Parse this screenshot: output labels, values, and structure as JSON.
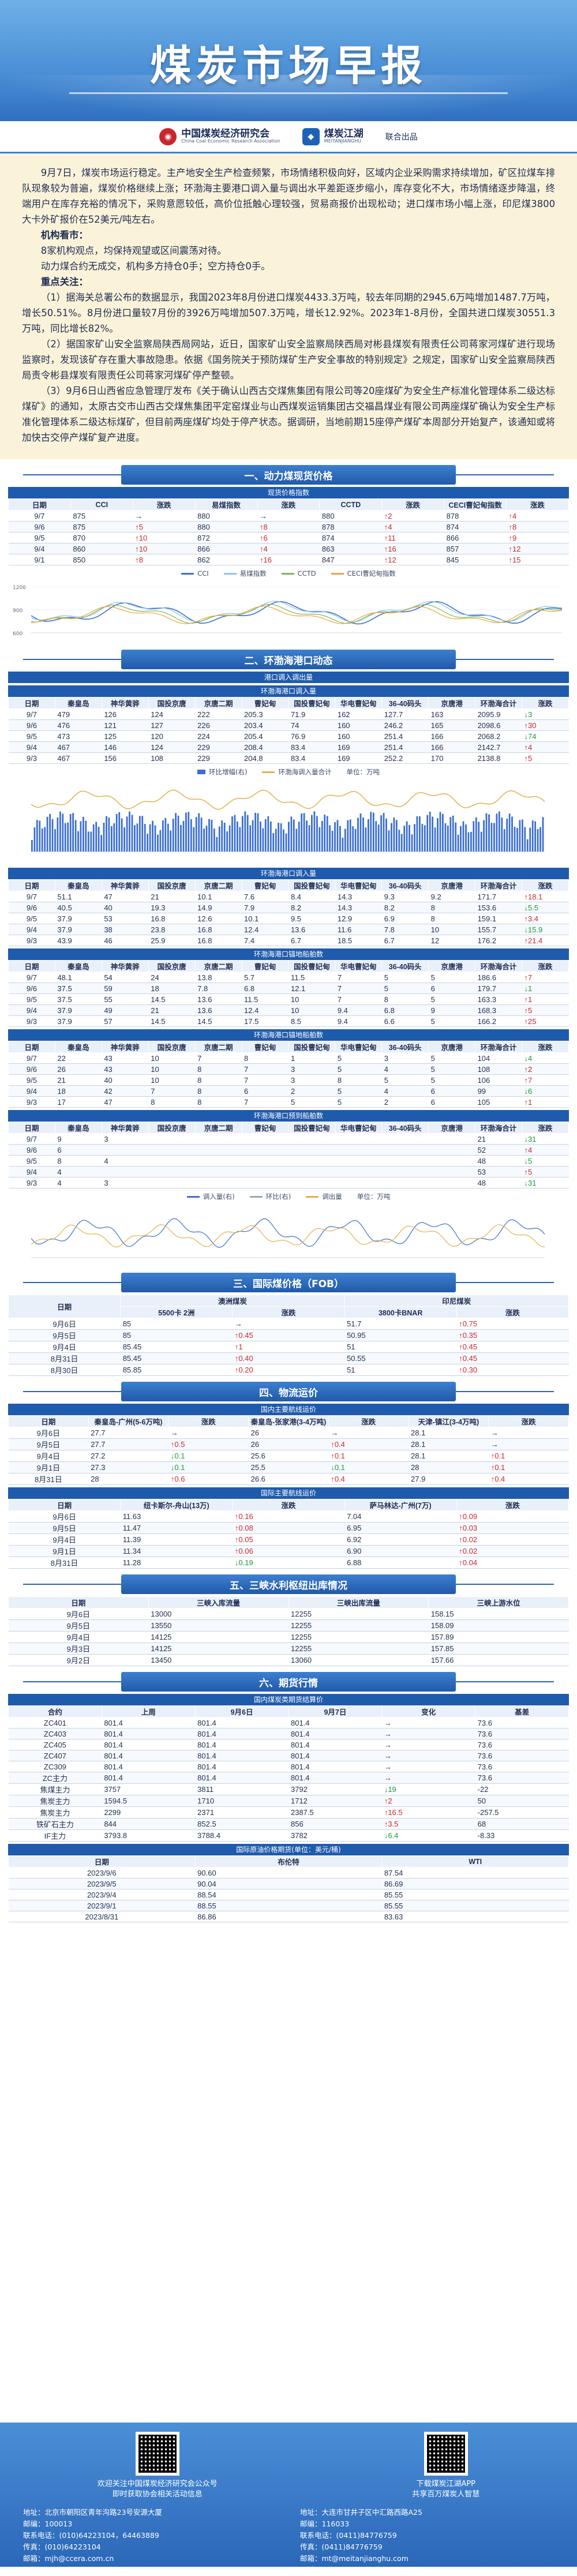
{
  "header": {
    "title": "煤炭市场早报"
  },
  "logos": {
    "cceri_cn": "中国煤炭经济研究会",
    "cceri_en": "China Coal Economic Research Association",
    "mtjh_cn": "煤炭江湖",
    "mtjh_en": "MEITANJIANGHU",
    "joint": "联合出品"
  },
  "intro": {
    "para1": "9月7日，煤炭市场运行稳定。主产地安全生产检查频繁，市场情绪积极向好，区域内企业采购需求持续增加，矿区拉煤车排队现象较为普遍，煤炭价格继续上涨；环渤海主要港口调入量与调出水平差距逐步缩小，库存变化不大，市场情绪逐步降温，终端用户在库存充裕的情况下，采购意愿较低，高价位抵触心理较强，贸易商报价出现松动；进口煤市场小幅上涨，印尼煤3800大卡外矿报价在52美元/吨左右。",
    "org_title": "机构看市：",
    "org_line1": "8家机构观点，均保持观望或区间震荡对待。",
    "org_line2": "动力煤合约无成交，机构多方持仓0手；空方持仓0手。",
    "news_title": "重点关注：",
    "news1": "（1）据海关总署公布的数据显示，我国2023年8月份进口煤炭4433.3万吨，较去年同期的2945.6万吨增加1487.7万吨，增长50.51%。8月份进口量较7月份的3926万吨增加507.3万吨，增长12.92%。2023年1-8月份，全国共进口煤炭30551.3万吨，同比增长82%。",
    "news2": "（2）据国家矿山安全监察局陕西局网站，近日，国家矿山安全监察局陕西局对彬县煤炭有限责任公司蒋家河煤矿进行现场监察时，发现该矿存在重大事故隐患。依据《国务院关于预防煤矿生产安全事故的特别规定》之规定，国家矿山安全监察局陕西局责令彬县煤炭有限责任公司蒋家河煤矿停产整顿。",
    "news3": "（3）9月6日山西省应急管理厅发布《关于确认山西古交煤焦集团有限公司等20座煤矿为安全生产标准化管理体系二级达标煤矿》的通知，太原古交市山西古交煤焦集团平定窑煤业与山西煤炭运销集团古交福昌煤业有限公司两座煤矿确认为安全生产标准化管理体系二级达标煤矿，但目前两座煤矿均处于停产状态。据调研，当地前期15座停产煤矿本周部分开始复产，该通知或将加快古交停产煤矿复产进度。"
  },
  "sec1": {
    "title": "一、动力煤现货价格",
    "sub": "现货价格指数",
    "headers": [
      "日期",
      "CCI",
      "涨跌",
      "易煤指数",
      "涨跌",
      "CCTD",
      "涨跌",
      "CECI曹妃甸指数",
      "涨跌"
    ],
    "rows": [
      [
        "9/7",
        "875",
        "→",
        "880",
        "→",
        "880",
        "↑2",
        "878",
        "↑4"
      ],
      [
        "9/6",
        "875",
        "↑5",
        "880",
        "↑8",
        "878",
        "↑4",
        "874",
        "↑8"
      ],
      [
        "9/5",
        "870",
        "↑10",
        "872",
        "↑6",
        "874",
        "↑11",
        "866",
        "↑9"
      ],
      [
        "9/4",
        "860",
        "↑10",
        "866",
        "↑4",
        "863",
        "↑16",
        "857",
        "↑12"
      ],
      [
        "9/1",
        "850",
        "↑8",
        "862",
        "↑16",
        "847",
        "↑12",
        "845",
        "↑15"
      ]
    ],
    "chart": {
      "legend": [
        "CCI",
        "易煤指数",
        "CCTD",
        "CECI曹妃甸指数"
      ],
      "colors": [
        "#3b6fd1",
        "#8cc2ee",
        "#7ab852",
        "#f0a23c"
      ]
    }
  },
  "sec2": {
    "title": "二、环渤海港口动态",
    "sub1": "港口调入调出量",
    "sub_in": "环渤海港口调入量",
    "headers": [
      "日期",
      "秦皇岛",
      "神华黄骅",
      "国投京唐",
      "京唐二期",
      "曹妃甸",
      "国投曹妃甸",
      "华电曹妃甸",
      "36-40码头",
      "京唐港",
      "环渤海合计",
      "涨跌"
    ],
    "in_rows": [
      [
        "9/7",
        "479",
        "126",
        "124",
        "222",
        "205.3",
        "71.9",
        "162",
        "127.7",
        "163",
        "2095.9",
        "↓3"
      ],
      [
        "9/6",
        "476",
        "121",
        "127",
        "226",
        "203.4",
        "74",
        "160",
        "246.2",
        "165",
        "2098.6",
        "↑30"
      ],
      [
        "9/5",
        "473",
        "125",
        "120",
        "224",
        "205.4",
        "76.9",
        "160",
        "251.4",
        "166",
        "2068.2",
        "↓74"
      ],
      [
        "9/4",
        "467",
        "146",
        "124",
        "229",
        "208.4",
        "83.4",
        "169",
        "251.4",
        "166",
        "2142.7",
        "↑4"
      ],
      [
        "9/3",
        "467",
        "156",
        "108",
        "229",
        "204.8",
        "83.4",
        "169",
        "252.2",
        "170",
        "2138.8",
        "↑5"
      ]
    ],
    "chart": {
      "legend": [
        "环比增幅(右)",
        "环渤海调入量合计"
      ],
      "unit": "单位：万吨"
    },
    "sub_out": "环渤海港口调入量",
    "out_rows": [
      [
        "9/7",
        "51.1",
        "47",
        "21",
        "10.1",
        "7.6",
        "8.4",
        "14.3",
        "9.3",
        "9.2",
        "171.7",
        "↑18.1"
      ],
      [
        "9/6",
        "40.5",
        "40",
        "19.3",
        "14.9",
        "7.9",
        "8.2",
        "14.3",
        "8.2",
        "8",
        "153.6",
        "↓5.5"
      ],
      [
        "9/5",
        "37.9",
        "53",
        "16.8",
        "12.6",
        "10.1",
        "9.5",
        "12.9",
        "6.9",
        "8",
        "159.1",
        "↑3.4"
      ],
      [
        "9/4",
        "37.9",
        "38",
        "23.8",
        "16.8",
        "12.4",
        "13.6",
        "11.6",
        "7.8",
        "10",
        "155.7",
        "↓15.9"
      ],
      [
        "9/3",
        "43.9",
        "46",
        "25.9",
        "16.8",
        "7.4",
        "6.7",
        "18.5",
        "6.7",
        "12",
        "176.2",
        "↑21.4"
      ]
    ],
    "sub_anchor": "环渤海港口锚地船舶数",
    "anchor_rows": [
      [
        "9/7",
        "48.1",
        "54",
        "24",
        "13.8",
        "5.7",
        "11.5",
        "7",
        "5",
        "5",
        "186.6",
        "↑7"
      ],
      [
        "9/6",
        "37.5",
        "59",
        "18",
        "7.8",
        "6.8",
        "12.1",
        "7",
        "5",
        "6",
        "179.7",
        "↓1"
      ],
      [
        "9/5",
        "37.5",
        "55",
        "14.5",
        "13.6",
        "11.5",
        "10",
        "7",
        "8",
        "5",
        "163.3",
        "↑1"
      ],
      [
        "9/4",
        "37.9",
        "49",
        "21",
        "13.6",
        "12.4",
        "10",
        "9.4",
        "6.8",
        "9",
        "168.3",
        "↑5"
      ],
      [
        "9/3",
        "37.9",
        "57",
        "14.5",
        "14.5",
        "17.5",
        "8.5",
        "9.4",
        "6.6",
        "5",
        "166.2",
        "↑25"
      ]
    ],
    "sub_ship": "环渤海港口锚地船舶数",
    "ship_rows": [
      [
        "9/7",
        "22",
        "43",
        "10",
        "7",
        "8",
        "1",
        "5",
        "3",
        "5",
        "104",
        "↓4"
      ],
      [
        "9/6",
        "26",
        "43",
        "10",
        "8",
        "7",
        "3",
        "5",
        "4",
        "5",
        "108",
        "↑2"
      ],
      [
        "9/5",
        "21",
        "40",
        "10",
        "8",
        "7",
        "3",
        "8",
        "5",
        "5",
        "106",
        "↑7"
      ],
      [
        "9/4",
        "18",
        "42",
        "7",
        "8",
        "6",
        "2",
        "5",
        "4",
        "6",
        "99",
        "↓6"
      ],
      [
        "9/3",
        "17",
        "47",
        "8",
        "8",
        "7",
        "5",
        "5",
        "2",
        "6",
        "105",
        "↑1"
      ]
    ],
    "sub_plan": "环渤海港口预到船舶数",
    "plan_rows": [
      [
        "9/7",
        "9",
        "3",
        "",
        "",
        "",
        "",
        "",
        "",
        "",
        "21",
        "↓31"
      ],
      [
        "9/6",
        "6",
        "",
        "",
        "",
        "",
        "",
        "",
        "",
        "",
        "52",
        "↑4"
      ],
      [
        "9/5",
        "8",
        "4",
        "",
        "",
        "",
        "",
        "",
        "",
        "",
        "48",
        "↓5"
      ],
      [
        "9/4",
        "4",
        "",
        "",
        "",
        "",
        "",
        "",
        "",
        "",
        "53",
        "↑5"
      ],
      [
        "9/3",
        "4",
        "3",
        "",
        "",
        "",
        "",
        "",
        "",
        "",
        "48",
        "↓31"
      ]
    ],
    "chart2": {
      "legend": [
        "调入量(右)",
        "环比(右)",
        "调出量"
      ],
      "unit": "单位：万吨"
    }
  },
  "sec3": {
    "title": "三、国际煤价格（FOB）",
    "h1": "澳洲煤炭",
    "h2": "印尼煤炭",
    "headers": [
      "日期",
      "5500卡 2洲",
      "涨跌",
      "3800卡BNAR",
      "涨跌"
    ],
    "rows": [
      [
        "9月6日",
        "85",
        "→",
        "51.7",
        "↑0.75"
      ],
      [
        "9月5日",
        "85",
        "↑0.45",
        "50.95",
        "↑0.35"
      ],
      [
        "9月4日",
        "85.45",
        "↑1",
        "51",
        "↑0.45"
      ],
      [
        "8月31日",
        "85.45",
        "↑0.40",
        "50.55",
        "↑0.45"
      ],
      [
        "8月30日",
        "85.85",
        "↑0.20",
        "51",
        "↑0.30"
      ]
    ]
  },
  "sec4": {
    "title": "四、物流运价",
    "sub1": "国内主要航线运价",
    "headers1": [
      "日期",
      "秦皇岛-广州(5-6万吨)",
      "涨跌",
      "秦皇岛-张家港(3-4万吨)",
      "涨跌",
      "天津-镇江(3-4万吨)",
      "涨跌"
    ],
    "rows1": [
      [
        "9月6日",
        "27.7",
        "→",
        "26",
        "→",
        "28.1",
        "→"
      ],
      [
        "9月5日",
        "27.7",
        "↑0.5",
        "26",
        "↑0.4",
        "28.1",
        "→"
      ],
      [
        "9月4日",
        "27.2",
        "↓0.1",
        "25.6",
        "↑0.1",
        "28.1",
        "↑0.1"
      ],
      [
        "9月1日",
        "27.3",
        "↓0.1",
        "25.5",
        "↓0.1",
        "28",
        "↑0.1"
      ],
      [
        "8月31日",
        "28",
        "↑0.6",
        "26.6",
        "↑0.4",
        "27.9",
        "↑0.4"
      ]
    ],
    "sub2": "国际主要航线运价",
    "headers2": [
      "日期",
      "纽卡斯尔-舟山(13万)",
      "涨跌",
      "萨马林达-广州(7万)",
      "涨跌"
    ],
    "rows2": [
      [
        "9月6日",
        "11.63",
        "↑0.16",
        "7.04",
        "↑0.09"
      ],
      [
        "9月5日",
        "11.47",
        "↑0.08",
        "6.95",
        "↑0.03"
      ],
      [
        "9月4日",
        "11.39",
        "↑0.05",
        "6.92",
        "↑0.02"
      ],
      [
        "9月1日",
        "11.34",
        "↑0.06",
        "6.90",
        "↑0.02"
      ],
      [
        "8月31日",
        "11.28",
        "↓0.19",
        "6.88",
        "↑0.04"
      ]
    ]
  },
  "sec5": {
    "title": "五、三峡水利枢纽出库情况",
    "headers": [
      "日期",
      "三峡入库流量",
      "三峡出库流量",
      "三峡上游水位"
    ],
    "rows": [
      [
        "9月6日",
        "13000",
        "12255",
        "158.15"
      ],
      [
        "9月5日",
        "13550",
        "12255",
        "158.09"
      ],
      [
        "9月4日",
        "14125",
        "12255",
        "157.89"
      ],
      [
        "9月3日",
        "14125",
        "12255",
        "157.85"
      ],
      [
        "9月2日",
        "13450",
        "13060",
        "157.66"
      ]
    ]
  },
  "sec6": {
    "title": "六、期货行情",
    "sub1": "国内煤炭类期货结算价",
    "headers1": [
      "合约",
      "上周",
      "9月6日",
      "9月7日",
      "变化",
      "基差"
    ],
    "rows1": [
      [
        "ZC401",
        "801.4",
        "801.4",
        "801.4",
        "→",
        "73.6"
      ],
      [
        "ZC403",
        "801.4",
        "801.4",
        "801.4",
        "→",
        "73.6"
      ],
      [
        "ZC405",
        "801.4",
        "801.4",
        "801.4",
        "→",
        "73.6"
      ],
      [
        "ZC407",
        "801.4",
        "801.4",
        "801.4",
        "→",
        "73.6"
      ],
      [
        "ZC309",
        "801.4",
        "801.4",
        "801.4",
        "→",
        "73.6"
      ],
      [
        "ZC主力",
        "801.4",
        "801.4",
        "801.4",
        "→",
        "73.6"
      ],
      [
        "焦煤主力",
        "3757",
        "3811",
        "3792",
        "↓19",
        "-22"
      ],
      [
        "焦炭主力",
        "1594.5",
        "1710",
        "1712",
        "↑2",
        "50"
      ],
      [
        "焦炭主力",
        "2299",
        "2371",
        "2387.5",
        "↑16.5",
        "-257.5"
      ],
      [
        "铁矿石主力",
        "844",
        "852.5",
        "856",
        "↑3.5",
        "68"
      ],
      [
        "IF主力",
        "3793.8",
        "3788.4",
        "3782",
        "↓6.4",
        "-8.33"
      ]
    ],
    "sub2": "国际原油价格期货(单位：美元/桶)",
    "headers2": [
      "日期",
      "布伦特",
      "WTI"
    ],
    "rows2": [
      [
        "2023/9/6",
        "90.60",
        "87.54"
      ],
      [
        "2023/9/5",
        "90.04",
        "86.69"
      ],
      [
        "2023/9/4",
        "88.54",
        "85.55"
      ],
      [
        "2023/9/1",
        "88.55",
        "85.55"
      ],
      [
        "2023/8/31",
        "86.86",
        "83.63"
      ]
    ]
  },
  "footer": {
    "qr1": "欢迎关注中国煤炭经济研究会公众号",
    "qr1b": "即时获取协会相关活动信息",
    "qr2": "下载煤炭江湖APP",
    "qr2b": "共享百万煤炭人智慧",
    "left": [
      "地址：北京市朝阳区青年沟路23号安源大厦",
      "邮编：100013",
      "联系电话：(010)64223104，64463889",
      "传真：(010)64223104",
      "邮箱：mjh@ccera.com.cn",
      "网址：http://www.ccera.com.cn"
    ],
    "right": [
      "地址：大连市甘井子区中汇路西路A25",
      "邮编：116033",
      "联系电话：(0411)84776759",
      "传真：(0411)84776759",
      "邮箱：mt@meitanjianghu.com",
      "网址：www.meitanjianghu.com"
    ]
  }
}
